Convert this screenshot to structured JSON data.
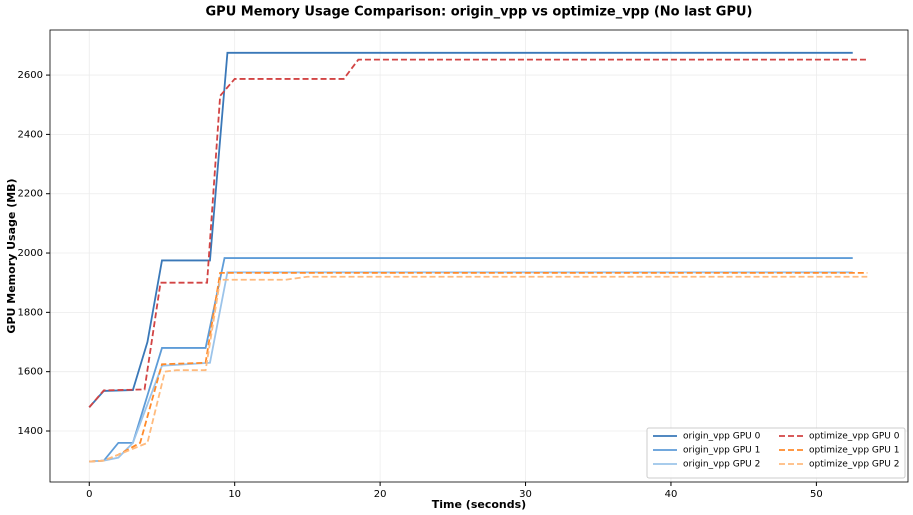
{
  "chart_data": {
    "type": "line",
    "title": "GPU Memory Usage Comparison: origin_vpp vs optimize_vpp (No last GPU)",
    "x_label": "Time (seconds)",
    "y_label": "GPU Memory Usage (MB)",
    "xlim": [
      -2.7,
      56.3
    ],
    "ylim": [
      1228,
      2752
    ],
    "xticks": [
      0,
      10,
      20,
      30,
      40,
      50
    ],
    "yticks": [
      1400,
      1600,
      1800,
      2000,
      2200,
      2400,
      2600
    ],
    "grid": true,
    "legend": "lower right",
    "series": [
      {
        "name": "origin_vpp GPU 0",
        "color": "#3a78b8",
        "dash": "solid",
        "x": [
          0,
          1,
          3,
          4,
          5,
          8.3,
          9.5,
          52.5
        ],
        "values": [
          1480,
          1535,
          1538,
          1700,
          1975,
          1975,
          2675,
          2675
        ]
      },
      {
        "name": "origin_vpp GPU 1",
        "color": "#5e9cd8",
        "dash": "solid",
        "x": [
          0,
          1,
          2,
          3,
          5,
          8,
          9.3,
          52.5
        ],
        "values": [
          1297,
          1300,
          1360,
          1360,
          1680,
          1680,
          1983,
          1983
        ]
      },
      {
        "name": "origin_vpp GPU 2",
        "color": "#9cc4ea",
        "dash": "solid",
        "x": [
          0,
          1,
          2,
          3,
          5,
          8.3,
          9.5,
          52.5
        ],
        "values": [
          1297,
          1300,
          1310,
          1360,
          1620,
          1630,
          1935,
          1935
        ]
      },
      {
        "name": "optimize_vpp GPU 0",
        "color": "#d24444",
        "dash": "dashed",
        "x": [
          0,
          1,
          3.8,
          4.9,
          8.1,
          9,
          10,
          17.5,
          18.5,
          53.5
        ],
        "values": [
          1480,
          1537,
          1540,
          1900,
          1900,
          2530,
          2587,
          2587,
          2652,
          2652
        ]
      },
      {
        "name": "optimize_vpp GPU 1",
        "color": "#ff8a2a",
        "dash": "dashed",
        "x": [
          0,
          1,
          2,
          3.5,
          5,
          8,
          9,
          53.5
        ],
        "values": [
          1297,
          1300,
          1320,
          1360,
          1625,
          1630,
          1933,
          1933
        ]
      },
      {
        "name": "optimize_vpp GPU 2",
        "color": "#ffbb7e",
        "dash": "dashed",
        "x": [
          0,
          1,
          3,
          4,
          5.2,
          6,
          8,
          9,
          13.5,
          15,
          53.5
        ],
        "values": [
          1297,
          1300,
          1340,
          1360,
          1600,
          1605,
          1605,
          1910,
          1910,
          1920,
          1920
        ]
      }
    ]
  }
}
